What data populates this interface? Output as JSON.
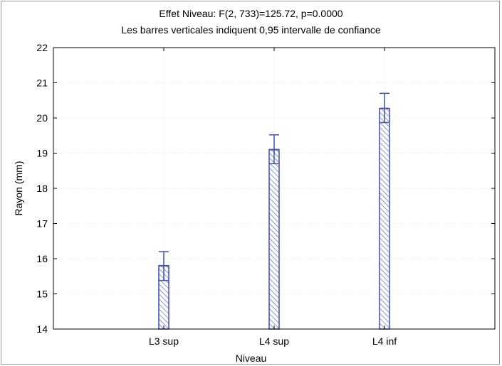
{
  "chart_data": {
    "type": "bar",
    "title": "Effet Niveau: F(2, 733)=125.72, p=0.0000",
    "subtitle": "Les barres verticales indiquent 0,95 intervalle de confiance",
    "xlabel": "Niveau",
    "ylabel": "Rayon (mm)",
    "categories": [
      "L3 sup",
      "L4 sup",
      "L4 inf"
    ],
    "values": [
      15.8,
      19.1,
      20.27
    ],
    "ci_low": [
      15.38,
      18.7,
      19.87
    ],
    "ci_high": [
      16.2,
      19.52,
      20.7
    ],
    "ylim": [
      14,
      22
    ],
    "yticks": [
      14,
      15,
      16,
      17,
      18,
      19,
      20,
      21,
      22
    ],
    "grid": true,
    "colors": {
      "bar_stroke": "#3f4fb0",
      "bar_hatch": "#5a68c4",
      "error_bar": "#3f4fb0",
      "grid": "#e6e6e6"
    }
  }
}
